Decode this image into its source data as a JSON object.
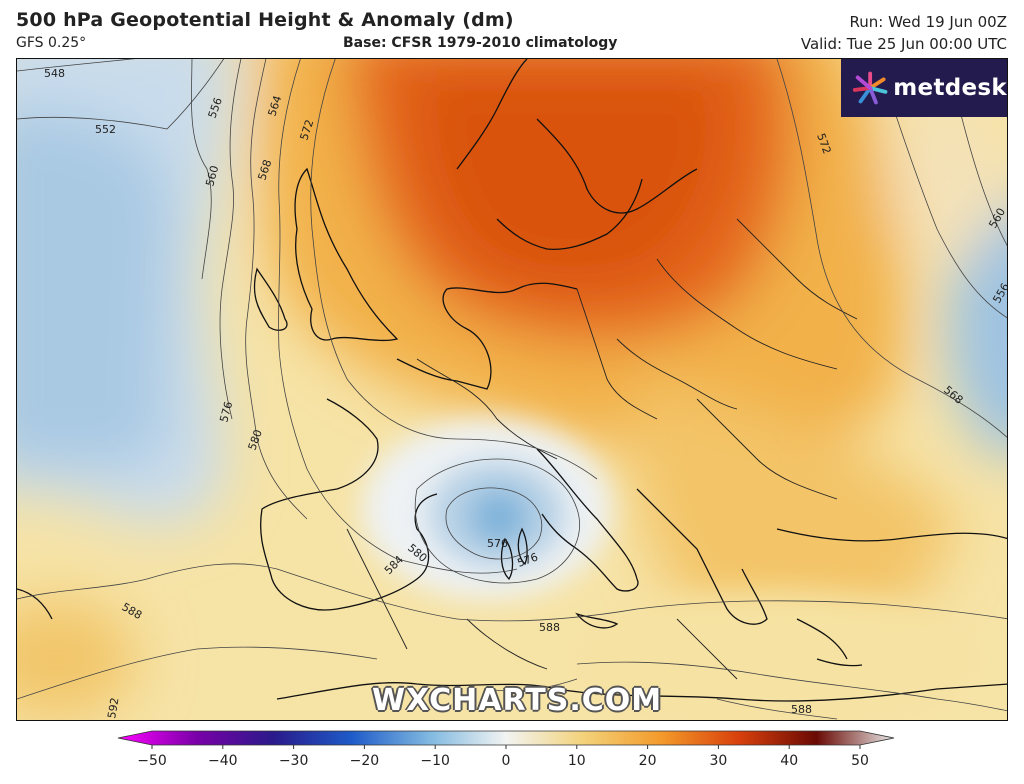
{
  "header": {
    "title": "500 hPa Geopotential Height & Anomaly (dm)",
    "model": "GFS 0.25°",
    "base": "Base: CFSR 1979-2010 climatology",
    "run": "Run: Wed 19 Jun 00Z",
    "valid": "Valid: Tue 25 Jun 00:00 UTC"
  },
  "brand": {
    "logo_text": "metdesk",
    "watermark": "WXCHARTS.COM",
    "logo_bg": "#231a4e"
  },
  "contours": [
    {
      "label": "548"
    },
    {
      "label": "552"
    },
    {
      "label": "556"
    },
    {
      "label": "560"
    },
    {
      "label": "564"
    },
    {
      "label": "568"
    },
    {
      "label": "572"
    },
    {
      "label": "576"
    },
    {
      "label": "580"
    },
    {
      "label": "584"
    },
    {
      "label": "588"
    },
    {
      "label": "592"
    }
  ],
  "colorbar": {
    "min": -50,
    "max": 50,
    "ticks": [
      "−50",
      "−40",
      "−30",
      "−20",
      "−10",
      "0",
      "10",
      "20",
      "30",
      "40",
      "50"
    ],
    "colors": [
      "#ff00ff",
      "#7a00a8",
      "#2a1a8a",
      "#1e5ac8",
      "#7fb8e0",
      "#f2f4f2",
      "#f3d27a",
      "#f39a2a",
      "#d8400c",
      "#6a0a04",
      "#e8e8e8"
    ]
  }
}
